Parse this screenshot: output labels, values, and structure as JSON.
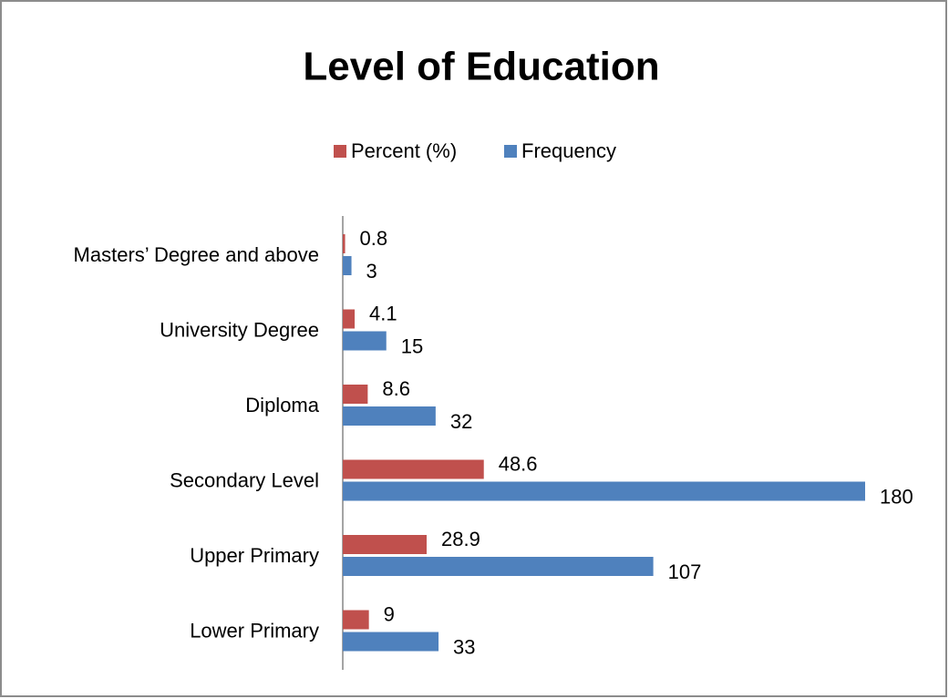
{
  "chart_data": {
    "type": "hbar",
    "title": "Level of Education",
    "categories": [
      "Masters’ Degree and above",
      "University Degree",
      "Diploma",
      "Secondary Level",
      "Upper Primary",
      "Lower Primary"
    ],
    "series": [
      {
        "name": "Percent (%)",
        "color": "#c0504d",
        "values": [
          0.8,
          4.1,
          8.6,
          48.6,
          28.9,
          9
        ]
      },
      {
        "name": "Frequency",
        "color": "#4f81bd",
        "values": [
          3,
          15,
          32,
          180,
          107,
          33
        ]
      }
    ],
    "xlim": [
      0,
      180
    ],
    "legend": "top"
  }
}
